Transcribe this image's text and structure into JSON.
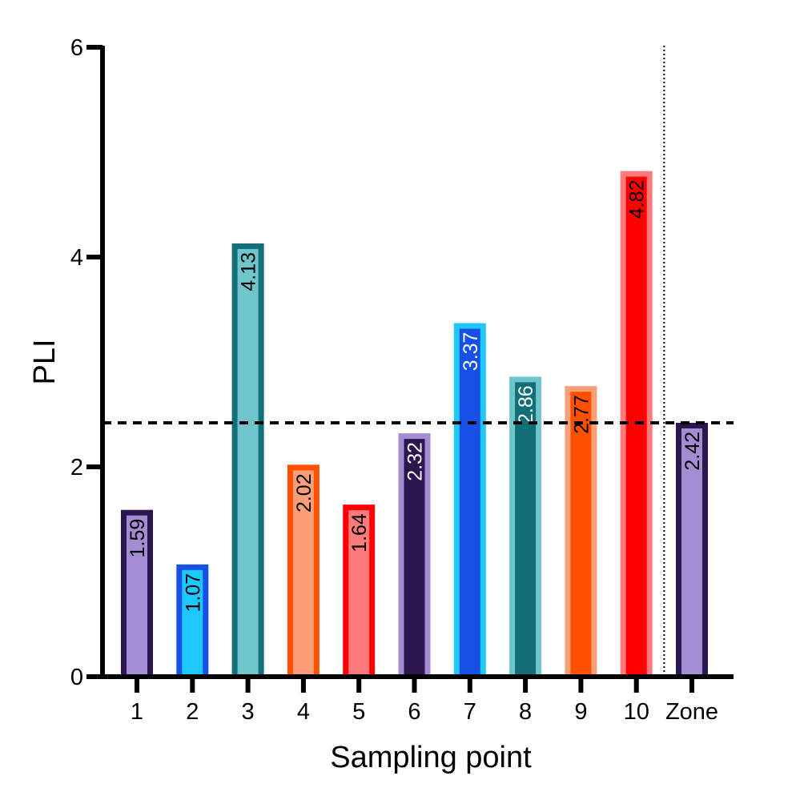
{
  "chart_data": {
    "type": "bar",
    "title": "",
    "xlabel": "Sampling point",
    "ylabel": "PLI",
    "ylim": [
      0,
      6
    ],
    "yticks": [
      0,
      2,
      4,
      6
    ],
    "categories": [
      "1",
      "2",
      "3",
      "4",
      "5",
      "6",
      "7",
      "8",
      "9",
      "10",
      "Zone"
    ],
    "values": [
      1.59,
      1.07,
      4.13,
      2.02,
      1.64,
      2.32,
      3.37,
      2.86,
      2.77,
      4.82,
      2.42
    ],
    "value_labels": [
      "1.59",
      "1.07",
      "4.13",
      "2.02",
      "1.64",
      "2.32",
      "3.37",
      "2.86",
      "2.77",
      "4.82",
      "2.42"
    ],
    "bar_fill_colors": [
      "#a48cd2",
      "#1ec8ff",
      "#6ec6cc",
      "#fa9e78",
      "#ff7a7a",
      "#2c1650",
      "#1650e6",
      "#126e78",
      "#ff5000",
      "#ff0000",
      "#a48cd2"
    ],
    "bar_edge_colors": [
      "#2c1650",
      "#1650e6",
      "#126e78",
      "#ff5000",
      "#ff0000",
      "#a48cd2",
      "#1ec8ff",
      "#6ec6cc",
      "#fa9e78",
      "#ff7a7a",
      "#2c1650"
    ],
    "label_colors": [
      "#000000",
      "#000000",
      "#000000",
      "#000000",
      "#000000",
      "#ffffff",
      "#ffffff",
      "#ffffff",
      "#000000",
      "#000000",
      "#000000"
    ],
    "reference_line": {
      "value": 2.42,
      "style": "dashed"
    },
    "separator": {
      "between": [
        "10",
        "Zone"
      ],
      "style": "dotted"
    },
    "grid": false,
    "legend": "none"
  }
}
